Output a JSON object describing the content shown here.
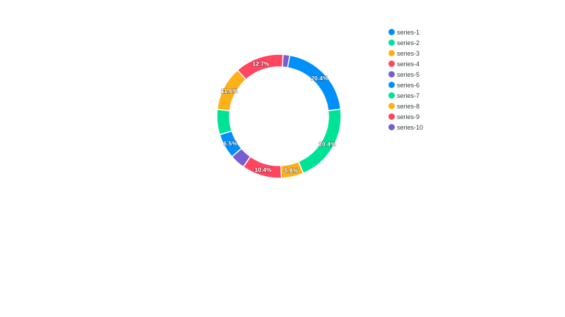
{
  "chart_data": {
    "type": "donut",
    "labels": [
      "series-1",
      "series-2",
      "series-3",
      "series-4",
      "series-5",
      "series-6",
      "series-7",
      "series-8",
      "series-9",
      "series-10"
    ],
    "values": [
      20.4,
      20.4,
      5.8,
      10.4,
      3.9,
      6.5,
      6.6,
      11.6,
      12.7,
      1.7
    ],
    "data_labels": [
      "20.4%",
      "20.4%",
      "5.8%",
      "10.4%",
      "",
      "6.5%",
      "",
      "11.6%",
      "12.7%",
      ""
    ],
    "colors": [
      "#008FFB",
      "#00E396",
      "#FEB019",
      "#FF4560",
      "#775DD0",
      "#008FFB",
      "#00E396",
      "#FEB019",
      "#FF4560",
      "#775DD0"
    ],
    "legend_position": "right"
  }
}
